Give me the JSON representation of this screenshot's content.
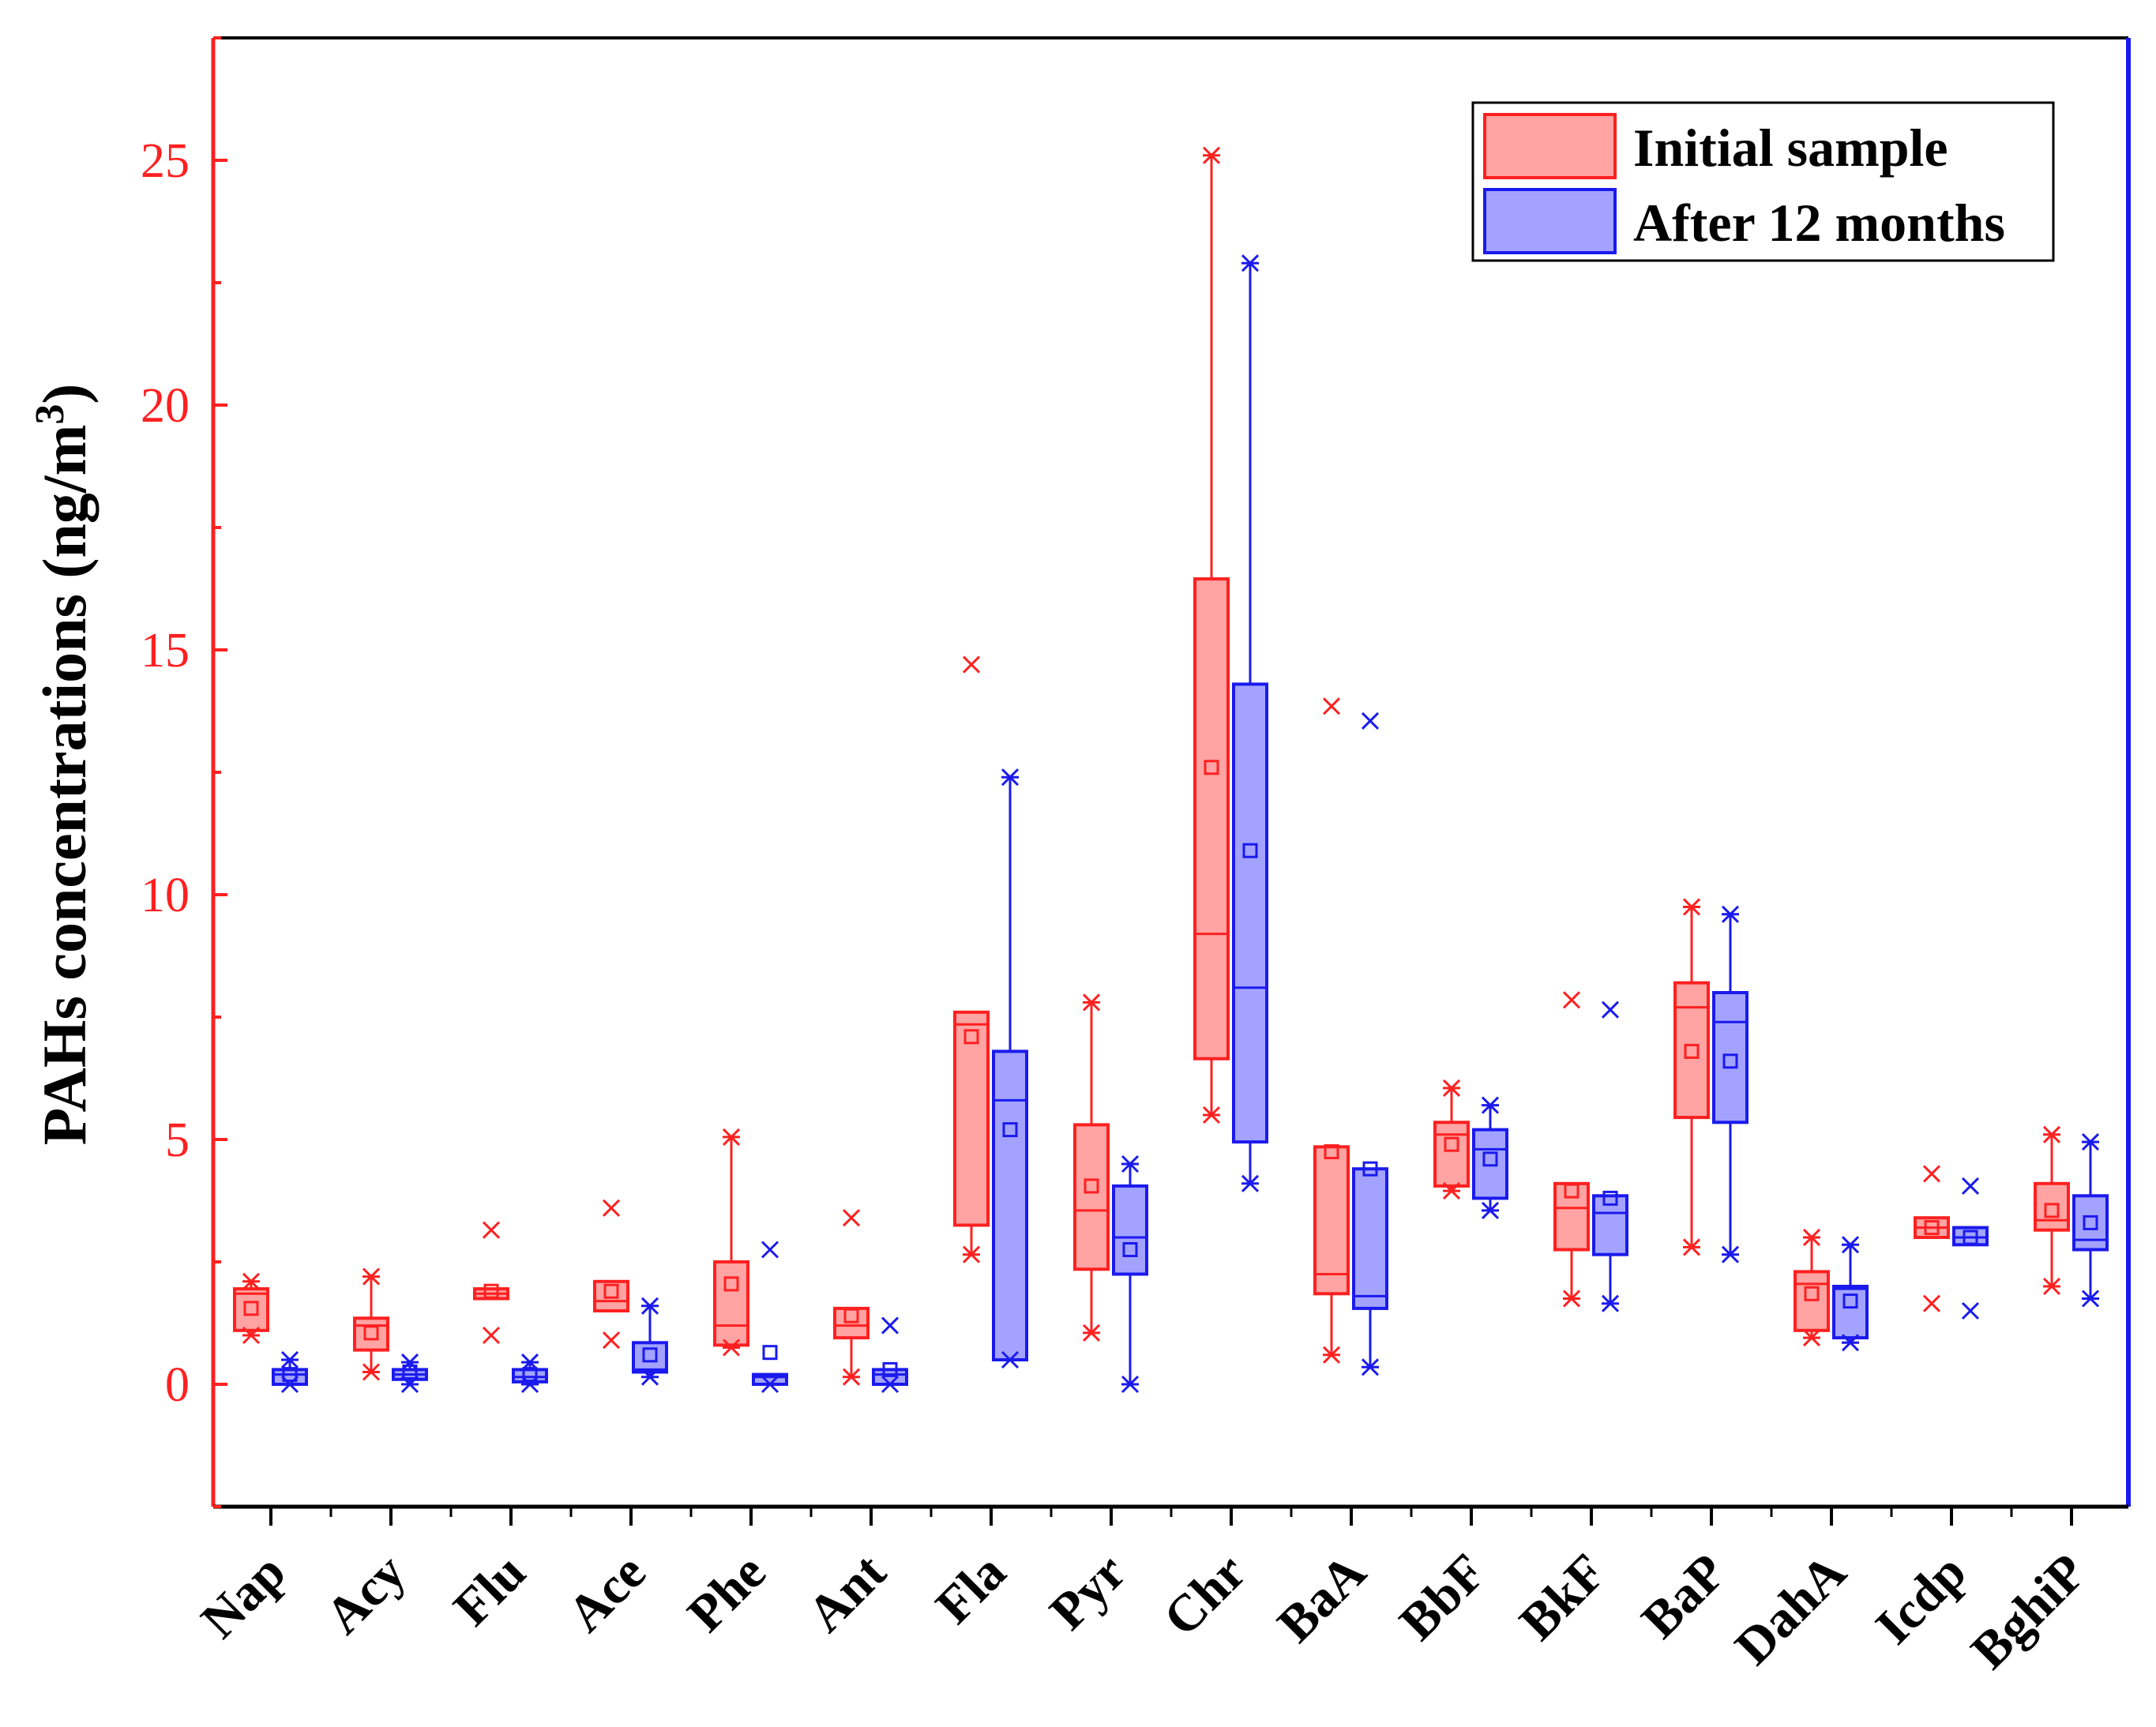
{
  "chart_data": {
    "type": "box",
    "ylabel": "PAHs concentrations (ng/m",
    "ylabel_superscript": "3",
    "ylabel_close": ")",
    "ylim": [
      -2.5,
      27.5
    ],
    "y_ticks": [
      0,
      5,
      10,
      15,
      20,
      25
    ],
    "y_tick_labels": [
      "0",
      "5",
      "10",
      "15",
      "20",
      "25"
    ],
    "categories": [
      "Nap",
      "Acy",
      "Flu",
      "Ace",
      "Phe",
      "Ant",
      "Fla",
      "Pyr",
      "Chr",
      "BaA",
      "BbF",
      "BkF",
      "BaP",
      "DahA",
      "Icdp",
      "BghiP"
    ],
    "legend_position": "top-right",
    "series": [
      {
        "name": "Initial sample",
        "color": "#ff2020",
        "fill": "#ffa3a3",
        "boxes": [
          {
            "wlow": 1.0,
            "q1": 1.1,
            "median": 1.85,
            "q3": 1.95,
            "whigh": 2.1,
            "mean": 1.55,
            "min": 1.0,
            "max": 2.1
          },
          {
            "wlow": 0.25,
            "q1": 0.7,
            "median": 1.2,
            "q3": 1.35,
            "whigh": 2.2,
            "mean": 1.05,
            "min": 0.25,
            "max": 2.2
          },
          {
            "wlow": 1.75,
            "q1": 1.75,
            "median": 1.85,
            "q3": 1.95,
            "whigh": 1.95,
            "mean": 1.9,
            "min": 1.0,
            "max": 3.15
          },
          {
            "wlow": 1.5,
            "q1": 1.5,
            "median": 1.7,
            "q3": 2.1,
            "whigh": 2.1,
            "mean": 1.9,
            "min": 0.9,
            "max": 3.6
          },
          {
            "wlow": 0.75,
            "q1": 0.8,
            "median": 1.2,
            "q3": 2.5,
            "whigh": 5.05,
            "mean": 2.05,
            "min": 0.75,
            "max": 5.05
          },
          {
            "wlow": 0.15,
            "q1": 0.95,
            "median": 1.2,
            "q3": 1.55,
            "whigh": 1.55,
            "mean": 1.4,
            "min": 0.15,
            "max": 3.4
          },
          {
            "wlow": 2.65,
            "q1": 3.25,
            "median": 7.35,
            "q3": 7.6,
            "whigh": 7.6,
            "mean": 7.1,
            "min": 2.65,
            "max": 14.7
          },
          {
            "wlow": 1.05,
            "q1": 2.35,
            "median": 3.55,
            "q3": 5.3,
            "whigh": 7.8,
            "mean": 4.05,
            "min": 1.05,
            "max": 7.8
          },
          {
            "wlow": 5.5,
            "q1": 6.65,
            "median": 9.2,
            "q3": 16.45,
            "whigh": 25.1,
            "mean": 12.6,
            "min": 5.5,
            "max": 25.1
          },
          {
            "wlow": 0.6,
            "q1": 1.85,
            "median": 2.25,
            "q3": 4.85,
            "whigh": 4.85,
            "mean": 4.75,
            "min": 0.6,
            "max": 13.85
          },
          {
            "wlow": 3.95,
            "q1": 4.05,
            "median": 5.1,
            "q3": 5.35,
            "whigh": 6.05,
            "mean": 4.9,
            "min": 3.95,
            "max": 6.05
          },
          {
            "wlow": 1.75,
            "q1": 2.75,
            "median": 3.6,
            "q3": 4.1,
            "whigh": 4.1,
            "mean": 3.95,
            "min": 1.75,
            "max": 7.85
          },
          {
            "wlow": 2.8,
            "q1": 5.45,
            "median": 7.7,
            "q3": 8.2,
            "whigh": 9.75,
            "mean": 6.8,
            "min": 2.8,
            "max": 9.75
          },
          {
            "wlow": 0.95,
            "q1": 1.1,
            "median": 2.05,
            "q3": 2.3,
            "whigh": 3.0,
            "mean": 1.85,
            "min": 0.95,
            "max": 3.0
          },
          {
            "wlow": 3.0,
            "q1": 3.0,
            "median": 3.2,
            "q3": 3.4,
            "whigh": 3.4,
            "mean": 3.2,
            "min": 1.65,
            "max": 4.3
          },
          {
            "wlow": 2.0,
            "q1": 3.15,
            "median": 3.35,
            "q3": 4.1,
            "whigh": 5.1,
            "mean": 3.55,
            "min": 2.0,
            "max": 5.1
          }
        ]
      },
      {
        "name": "After 12 months",
        "color": "#1a1aee",
        "fill": "#a3a3ff",
        "boxes": [
          {
            "wlow": 0.0,
            "q1": 0.0,
            "median": 0.2,
            "q3": 0.3,
            "whigh": 0.5,
            "mean": 0.2,
            "min": 0.0,
            "max": 0.5
          },
          {
            "wlow": 0.0,
            "q1": 0.1,
            "median": 0.2,
            "q3": 0.3,
            "whigh": 0.45,
            "mean": 0.25,
            "min": 0.0,
            "max": 0.45
          },
          {
            "wlow": 0.0,
            "q1": 0.05,
            "median": 0.15,
            "q3": 0.3,
            "whigh": 0.45,
            "mean": 0.2,
            "min": 0.0,
            "max": 0.45
          },
          {
            "wlow": 0.15,
            "q1": 0.25,
            "median": 0.3,
            "q3": 0.85,
            "whigh": 1.6,
            "mean": 0.6,
            "min": 0.15,
            "max": 1.6
          },
          {
            "wlow": 0.0,
            "q1": 0.0,
            "median": 0.15,
            "q3": 0.2,
            "whigh": 0.2,
            "mean": 0.65,
            "min": 0.0,
            "max": 2.75
          },
          {
            "wlow": 0.0,
            "q1": 0.0,
            "median": 0.2,
            "q3": 0.3,
            "whigh": 0.3,
            "mean": 0.3,
            "min": 0.0,
            "max": 1.2
          },
          {
            "wlow": 0.5,
            "q1": 0.5,
            "median": 5.8,
            "q3": 6.8,
            "whigh": 12.4,
            "mean": 5.2,
            "min": 0.5,
            "max": 12.4
          },
          {
            "wlow": 0.0,
            "q1": 2.25,
            "median": 3.0,
            "q3": 4.05,
            "whigh": 4.5,
            "mean": 2.75,
            "min": 0.0,
            "max": 4.5
          },
          {
            "wlow": 4.1,
            "q1": 4.95,
            "median": 8.1,
            "q3": 14.3,
            "whigh": 22.9,
            "mean": 10.9,
            "min": 4.1,
            "max": 22.9
          },
          {
            "wlow": 0.35,
            "q1": 1.55,
            "median": 1.8,
            "q3": 4.4,
            "whigh": 4.4,
            "mean": 4.4,
            "min": 0.35,
            "max": 13.55
          },
          {
            "wlow": 3.55,
            "q1": 3.8,
            "median": 4.8,
            "q3": 5.2,
            "whigh": 5.7,
            "mean": 4.6,
            "min": 3.55,
            "max": 5.7
          },
          {
            "wlow": 1.65,
            "q1": 2.65,
            "median": 3.5,
            "q3": 3.85,
            "whigh": 3.85,
            "mean": 3.8,
            "min": 1.65,
            "max": 7.65
          },
          {
            "wlow": 2.65,
            "q1": 5.35,
            "median": 7.4,
            "q3": 8.0,
            "whigh": 9.6,
            "mean": 6.6,
            "min": 2.65,
            "max": 9.6
          },
          {
            "wlow": 0.85,
            "q1": 0.95,
            "median": 1.95,
            "q3": 2.0,
            "whigh": 2.85,
            "mean": 1.7,
            "min": 0.85,
            "max": 2.85
          },
          {
            "wlow": 2.85,
            "q1": 2.85,
            "median": 3.0,
            "q3": 3.2,
            "whigh": 3.2,
            "mean": 3.0,
            "min": 1.5,
            "max": 4.05
          },
          {
            "wlow": 1.75,
            "q1": 2.75,
            "median": 2.95,
            "q3": 3.85,
            "whigh": 4.95,
            "mean": 3.3,
            "min": 1.75,
            "max": 4.95
          }
        ]
      }
    ]
  }
}
